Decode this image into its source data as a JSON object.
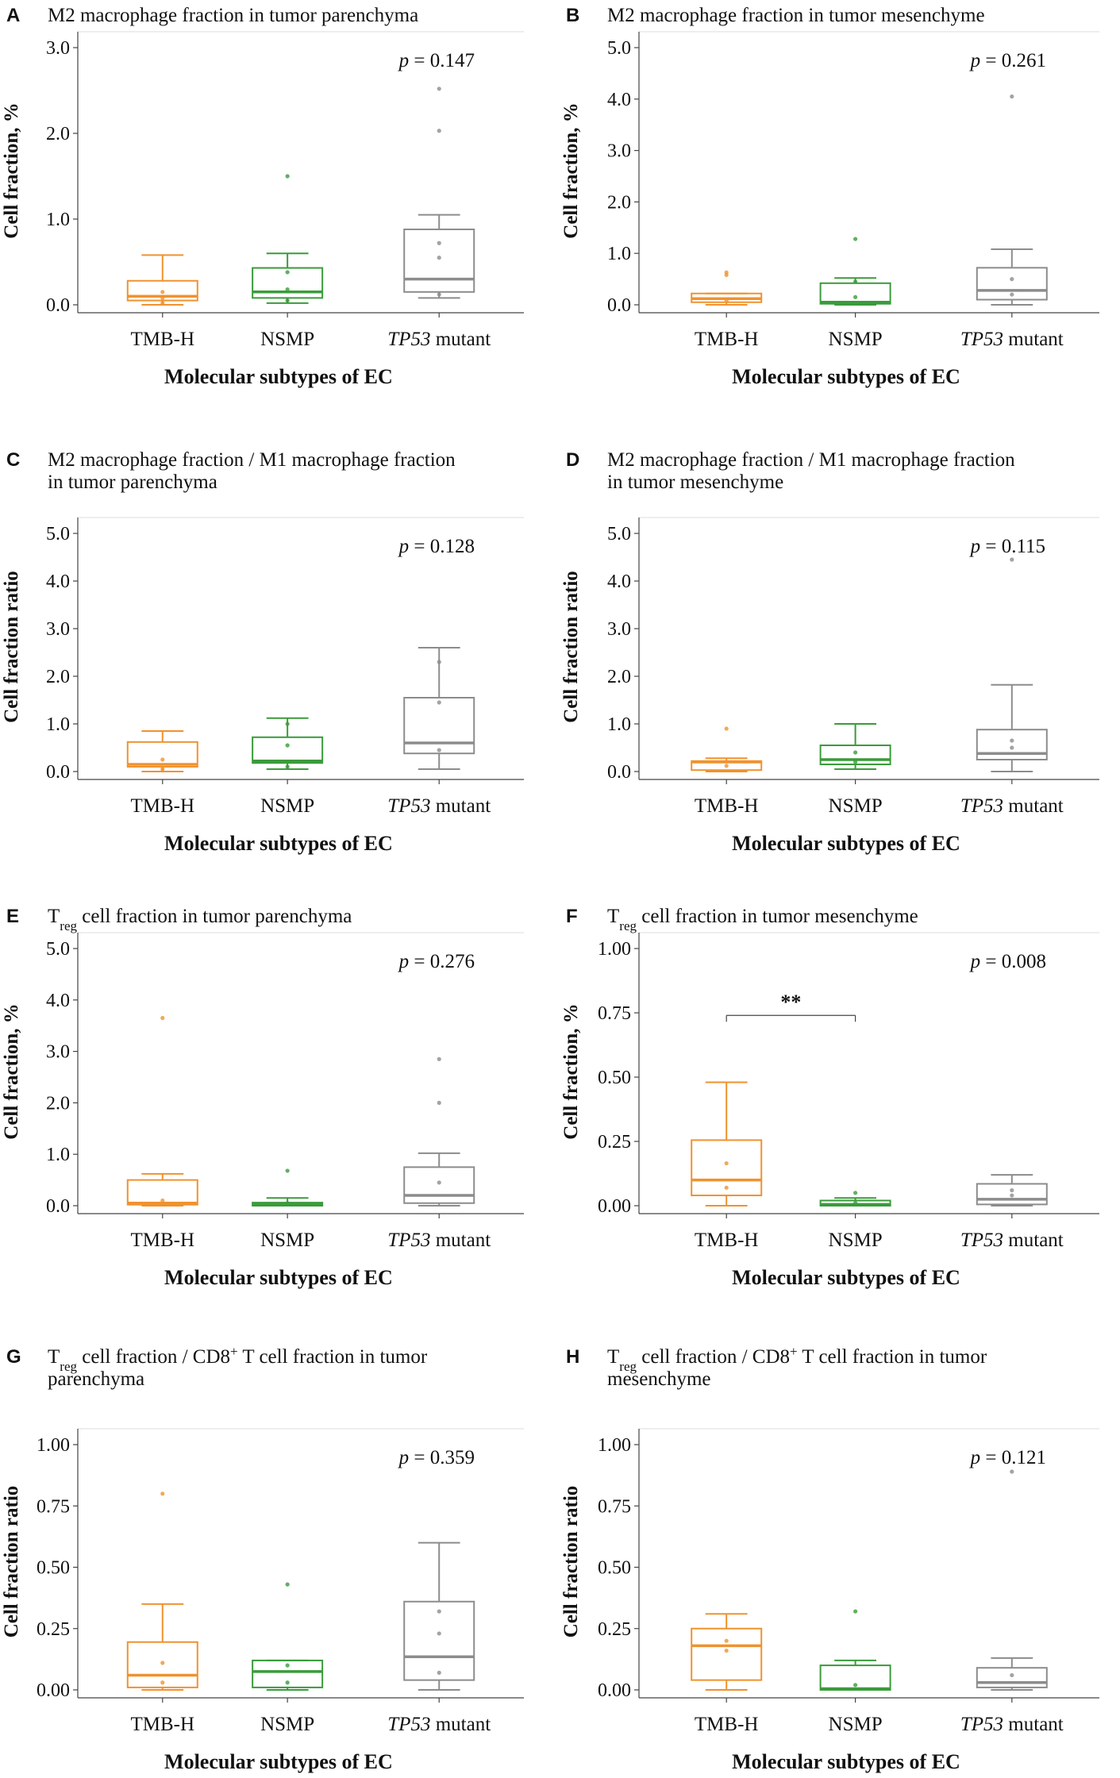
{
  "colors": {
    "tmb": "#f0922e",
    "nsmp": "#3a9b3a",
    "tp53": "#8c8c8c",
    "axis": "#444444"
  },
  "chart_data": [
    {
      "type": "box",
      "panel": "A",
      "title_lines": [
        {
          "main": "M2 macrophage fraction in tumor parenchyma"
        }
      ],
      "ylabel": "Cell fraction, %",
      "xlabel": "Molecular subtypes of EC",
      "categories": [
        {
          "label": "TMB-H"
        },
        {
          "label": "NSMP"
        },
        {
          "label": "TP53",
          "suffix": " mutant",
          "italic": true
        }
      ],
      "ylim": [
        0,
        3.0
      ],
      "yticks": [
        {
          "v": 0,
          "label": "0.0"
        },
        {
          "v": 1,
          "label": "1.0"
        },
        {
          "v": 2,
          "label": "2.0"
        },
        {
          "v": 3,
          "label": "3.0"
        }
      ],
      "p_label": "p",
      "p_value": "= 0.147",
      "boxes": [
        {
          "color": "tmb",
          "whisker_low": 0.0,
          "q1": 0.05,
          "median": 0.1,
          "q3": 0.28,
          "whisker_high": 0.58,
          "points": [
            0.02,
            0.08,
            0.15
          ]
        },
        {
          "color": "nsmp",
          "whisker_low": 0.02,
          "q1": 0.08,
          "median": 0.15,
          "q3": 0.43,
          "whisker_high": 0.6,
          "points": [
            0.05,
            0.18,
            0.38,
            1.5
          ]
        },
        {
          "color": "tp53",
          "whisker_low": 0.08,
          "q1": 0.15,
          "median": 0.3,
          "q3": 0.88,
          "whisker_high": 1.05,
          "points": [
            0.12,
            0.55,
            0.72,
            2.03,
            2.52
          ]
        }
      ]
    },
    {
      "type": "box",
      "panel": "B",
      "title_lines": [
        {
          "main": "M2 macrophage fraction in tumor mesenchyme"
        }
      ],
      "ylabel": "Cell fraction, %",
      "xlabel": "Molecular subtypes of EC",
      "categories": [
        {
          "label": "TMB-H"
        },
        {
          "label": "NSMP"
        },
        {
          "label": "TP53",
          "suffix": " mutant",
          "italic": true
        }
      ],
      "ylim": [
        0,
        5.0
      ],
      "yticks": [
        {
          "v": 0,
          "label": "0.0"
        },
        {
          "v": 1,
          "label": "1.0"
        },
        {
          "v": 2,
          "label": "2.0"
        },
        {
          "v": 3,
          "label": "3.0"
        },
        {
          "v": 4,
          "label": "4.0"
        },
        {
          "v": 5,
          "label": "5.0"
        }
      ],
      "p_label": "p",
      "p_value": "= 0.261",
      "boxes": [
        {
          "color": "tmb",
          "whisker_low": 0.0,
          "q1": 0.05,
          "median": 0.12,
          "q3": 0.22,
          "whisker_high": 0.22,
          "points": [
            0.08,
            0.58,
            0.63
          ]
        },
        {
          "color": "nsmp",
          "whisker_low": 0.0,
          "q1": 0.02,
          "median": 0.05,
          "q3": 0.42,
          "whisker_high": 0.52,
          "points": [
            0.15,
            0.45,
            1.28
          ]
        },
        {
          "color": "tp53",
          "whisker_low": 0.0,
          "q1": 0.1,
          "median": 0.28,
          "q3": 0.72,
          "whisker_high": 1.08,
          "points": [
            0.2,
            0.5,
            4.05
          ]
        }
      ]
    },
    {
      "type": "box",
      "panel": "C",
      "title_lines": [
        {
          "main": "M2 macrophage fraction / M1 macrophage fraction"
        },
        {
          "main": "in tumor parenchyma"
        }
      ],
      "ylabel": "Cell fraction ratio",
      "xlabel": "Molecular subtypes of EC",
      "categories": [
        {
          "label": "TMB-H"
        },
        {
          "label": "NSMP"
        },
        {
          "label": "TP53",
          "suffix": " mutant",
          "italic": true
        }
      ],
      "ylim": [
        0,
        5.0
      ],
      "yticks": [
        {
          "v": 0,
          "label": "0.0"
        },
        {
          "v": 1,
          "label": "1.0"
        },
        {
          "v": 2,
          "label": "2.0"
        },
        {
          "v": 3,
          "label": "3.0"
        },
        {
          "v": 4,
          "label": "4.0"
        },
        {
          "v": 5,
          "label": "5.0"
        }
      ],
      "p_label": "p",
      "p_value": "= 0.128",
      "boxes": [
        {
          "color": "tmb",
          "whisker_low": 0.0,
          "q1": 0.1,
          "median": 0.15,
          "q3": 0.62,
          "whisker_high": 0.85,
          "points": [
            0.05,
            0.25
          ]
        },
        {
          "color": "nsmp",
          "whisker_low": 0.05,
          "q1": 0.18,
          "median": 0.22,
          "q3": 0.72,
          "whisker_high": 1.12,
          "points": [
            0.1,
            0.55,
            1.0
          ]
        },
        {
          "color": "tp53",
          "whisker_low": 0.05,
          "q1": 0.38,
          "median": 0.6,
          "q3": 1.55,
          "whisker_high": 2.6,
          "points": [
            0.45,
            1.45,
            2.3
          ]
        }
      ]
    },
    {
      "type": "box",
      "panel": "D",
      "title_lines": [
        {
          "main": "M2 macrophage fraction / M1 macrophage fraction"
        },
        {
          "main": "in tumor mesenchyme"
        }
      ],
      "ylabel": "Cell fraction ratio",
      "xlabel": "Molecular subtypes of EC",
      "categories": [
        {
          "label": "TMB-H"
        },
        {
          "label": "NSMP"
        },
        {
          "label": "TP53",
          "suffix": " mutant",
          "italic": true
        }
      ],
      "ylim": [
        0,
        5.0
      ],
      "yticks": [
        {
          "v": 0,
          "label": "0.0"
        },
        {
          "v": 1,
          "label": "1.0"
        },
        {
          "v": 2,
          "label": "2.0"
        },
        {
          "v": 3,
          "label": "3.0"
        },
        {
          "v": 4,
          "label": "4.0"
        },
        {
          "v": 5,
          "label": "5.0"
        }
      ],
      "p_label": "p",
      "p_value": "= 0.115",
      "boxes": [
        {
          "color": "tmb",
          "whisker_low": 0.0,
          "q1": 0.03,
          "median": 0.2,
          "q3": 0.22,
          "whisker_high": 0.28,
          "points": [
            0.12,
            0.9
          ]
        },
        {
          "color": "nsmp",
          "whisker_low": 0.05,
          "q1": 0.15,
          "median": 0.25,
          "q3": 0.55,
          "whisker_high": 1.0,
          "points": [
            0.2,
            0.4
          ]
        },
        {
          "color": "tp53",
          "whisker_low": 0.0,
          "q1": 0.25,
          "median": 0.38,
          "q3": 0.88,
          "whisker_high": 1.82,
          "points": [
            0.5,
            0.65,
            4.45
          ]
        }
      ]
    },
    {
      "type": "box",
      "panel": "E",
      "title_lines": [
        {
          "main": "T",
          "sub": "reg",
          "rest": " cell fraction in tumor parenchyma"
        }
      ],
      "ylabel": "Cell fraction, %",
      "xlabel": "Molecular subtypes of EC",
      "categories": [
        {
          "label": "TMB-H"
        },
        {
          "label": "NSMP"
        },
        {
          "label": "TP53",
          "suffix": " mutant",
          "italic": true
        }
      ],
      "ylim": [
        0,
        5.0
      ],
      "yticks": [
        {
          "v": 0,
          "label": "0.0"
        },
        {
          "v": 1,
          "label": "1.0"
        },
        {
          "v": 2,
          "label": "2.0"
        },
        {
          "v": 3,
          "label": "3.0"
        },
        {
          "v": 4,
          "label": "4.0"
        },
        {
          "v": 5,
          "label": "5.0"
        }
      ],
      "p_label": "p",
      "p_value": "= 0.276",
      "boxes": [
        {
          "color": "tmb",
          "whisker_low": 0.0,
          "q1": 0.02,
          "median": 0.05,
          "q3": 0.5,
          "whisker_high": 0.62,
          "points": [
            0.1,
            3.65
          ]
        },
        {
          "color": "nsmp",
          "whisker_low": 0.0,
          "q1": 0.0,
          "median": 0.03,
          "q3": 0.06,
          "whisker_high": 0.15,
          "points": [
            0.05,
            0.68
          ]
        },
        {
          "color": "tp53",
          "whisker_low": 0.0,
          "q1": 0.05,
          "median": 0.2,
          "q3": 0.75,
          "whisker_high": 1.02,
          "points": [
            0.45,
            2.0,
            2.85
          ]
        }
      ]
    },
    {
      "type": "box",
      "panel": "F",
      "title_lines": [
        {
          "main": "T",
          "sub": "reg",
          "rest": " cell fraction in tumor mesenchyme"
        }
      ],
      "ylabel": "Cell fraction, %",
      "xlabel": "Molecular subtypes of EC",
      "categories": [
        {
          "label": "TMB-H"
        },
        {
          "label": "NSMP"
        },
        {
          "label": "TP53",
          "suffix": " mutant",
          "italic": true
        }
      ],
      "ylim": [
        0,
        1.0
      ],
      "yticks": [
        {
          "v": 0,
          "label": "0.00"
        },
        {
          "v": 0.25,
          "label": "0.25"
        },
        {
          "v": 0.5,
          "label": "0.50"
        },
        {
          "v": 0.75,
          "label": "0.75"
        },
        {
          "v": 1.0,
          "label": "1.00"
        }
      ],
      "p_label": "p",
      "p_value": "= 0.008",
      "significance": {
        "label": "**",
        "from": 0,
        "to": 1,
        "y": 0.74
      },
      "boxes": [
        {
          "color": "tmb",
          "whisker_low": 0.0,
          "q1": 0.04,
          "median": 0.1,
          "q3": 0.255,
          "whisker_high": 0.48,
          "points": [
            0.07,
            0.165
          ]
        },
        {
          "color": "nsmp",
          "whisker_low": 0.0,
          "q1": 0.0,
          "median": 0.005,
          "q3": 0.02,
          "whisker_high": 0.03,
          "points": [
            0.01,
            0.05
          ]
        },
        {
          "color": "tp53",
          "whisker_low": 0.0,
          "q1": 0.005,
          "median": 0.025,
          "q3": 0.085,
          "whisker_high": 0.12,
          "points": [
            0.04,
            0.06
          ]
        }
      ]
    },
    {
      "type": "box",
      "panel": "G",
      "title_lines": [
        {
          "main": "T",
          "sub": "reg",
          "rest": " cell fraction / CD8",
          "sup": "+",
          "rest2": " T cell fraction in tumor"
        },
        {
          "main": "parenchyma"
        }
      ],
      "ylabel": "Cell fraction ratio",
      "xlabel": "Molecular subtypes of EC",
      "categories": [
        {
          "label": "TMB-H"
        },
        {
          "label": "NSMP"
        },
        {
          "label": "TP53",
          "suffix": " mutant",
          "italic": true
        }
      ],
      "ylim": [
        0,
        1.0
      ],
      "yticks": [
        {
          "v": 0,
          "label": "0.00"
        },
        {
          "v": 0.25,
          "label": "0.25"
        },
        {
          "v": 0.5,
          "label": "0.50"
        },
        {
          "v": 0.75,
          "label": "0.75"
        },
        {
          "v": 1.0,
          "label": "1.00"
        }
      ],
      "p_label": "p",
      "p_value": "= 0.359",
      "boxes": [
        {
          "color": "tmb",
          "whisker_low": 0.0,
          "q1": 0.01,
          "median": 0.06,
          "q3": 0.195,
          "whisker_high": 0.35,
          "points": [
            0.03,
            0.11,
            0.8
          ]
        },
        {
          "color": "nsmp",
          "whisker_low": 0.0,
          "q1": 0.01,
          "median": 0.075,
          "q3": 0.12,
          "whisker_high": 0.12,
          "points": [
            0.03,
            0.1,
            0.43
          ]
        },
        {
          "color": "tp53",
          "whisker_low": 0.0,
          "q1": 0.04,
          "median": 0.135,
          "q3": 0.36,
          "whisker_high": 0.6,
          "points": [
            0.07,
            0.23,
            0.32
          ]
        }
      ]
    },
    {
      "type": "box",
      "panel": "H",
      "title_lines": [
        {
          "main": "T",
          "sub": "reg",
          "rest": " cell fraction / CD8",
          "sup": "+",
          "rest2": " T cell fraction in tumor"
        },
        {
          "main": "mesenchyme"
        }
      ],
      "ylabel": "Cell fraction ratio",
      "xlabel": "Molecular subtypes of EC",
      "categories": [
        {
          "label": "TMB-H"
        },
        {
          "label": "NSMP"
        },
        {
          "label": "TP53",
          "suffix": " mutant",
          "italic": true
        }
      ],
      "ylim": [
        0,
        1.0
      ],
      "yticks": [
        {
          "v": 0,
          "label": "0.00"
        },
        {
          "v": 0.25,
          "label": "0.25"
        },
        {
          "v": 0.5,
          "label": "0.50"
        },
        {
          "v": 0.75,
          "label": "0.75"
        },
        {
          "v": 1.0,
          "label": "1.00"
        }
      ],
      "p_label": "p",
      "p_value": "= 0.121",
      "boxes": [
        {
          "color": "tmb",
          "whisker_low": 0.0,
          "q1": 0.04,
          "median": 0.18,
          "q3": 0.25,
          "whisker_high": 0.31,
          "points": [
            0.16,
            0.2
          ]
        },
        {
          "color": "nsmp",
          "whisker_low": 0.0,
          "q1": 0.0,
          "median": 0.005,
          "q3": 0.1,
          "whisker_high": 0.12,
          "points": [
            0.02,
            0.32
          ]
        },
        {
          "color": "tp53",
          "whisker_low": 0.0,
          "q1": 0.01,
          "median": 0.03,
          "q3": 0.09,
          "whisker_high": 0.13,
          "points": [
            0.06,
            0.89
          ]
        }
      ]
    }
  ]
}
